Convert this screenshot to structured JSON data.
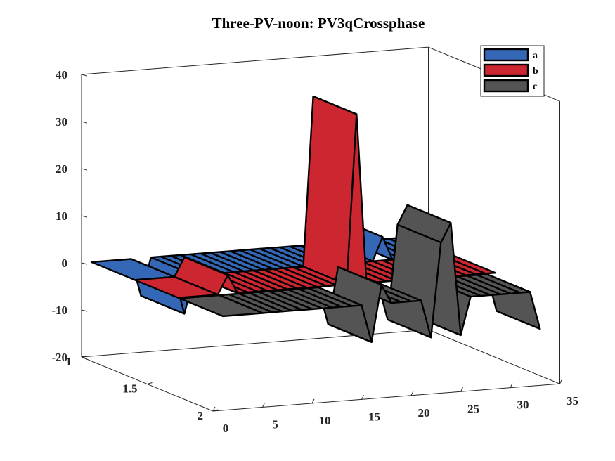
{
  "chart_data": {
    "type": "area",
    "title": "Three-PV-noon: PV3qCrossphase",
    "xlabel": "",
    "ylabel": "",
    "zlabel": "",
    "xlim": [
      0,
      35
    ],
    "ylim": [
      1,
      2
    ],
    "zlim": [
      -20,
      40
    ],
    "x_ticks": [
      "0",
      "5",
      "10",
      "15",
      "20",
      "25",
      "30",
      "35"
    ],
    "y_ticks": [
      "1",
      "1.5",
      "2"
    ],
    "z_ticks": [
      "-20",
      "-10",
      "0",
      "10",
      "20",
      "30",
      "40"
    ],
    "legend_position": "top-right",
    "series": [
      {
        "name": "a",
        "color": "#3467b5",
        "x": [
          1,
          5,
          6,
          7,
          8,
          9,
          10,
          11,
          12,
          13,
          14,
          15,
          16,
          17,
          18,
          19,
          20,
          21,
          22,
          23,
          24,
          25,
          26,
          27,
          28,
          29,
          30,
          31,
          32,
          33
        ],
        "values": [
          0,
          0,
          -8,
          0,
          0,
          0,
          0,
          0,
          0,
          0,
          0,
          0,
          0,
          0,
          0,
          0,
          0,
          0,
          0,
          0,
          0,
          0,
          5,
          0,
          0,
          0,
          0,
          0,
          0,
          -2
        ]
      },
      {
        "name": "b",
        "color": "#cc2631",
        "x": [
          1,
          5,
          6,
          7,
          8,
          9,
          10,
          11,
          12,
          13,
          14,
          15,
          16,
          17,
          18,
          19,
          20,
          21,
          22,
          23,
          24,
          25,
          26,
          27,
          28,
          29,
          30,
          31,
          32,
          33
        ],
        "values": [
          0,
          0,
          4,
          0,
          0,
          0,
          0,
          0,
          0,
          0,
          0,
          0,
          0,
          0,
          0,
          36,
          0,
          0,
          0,
          0,
          0,
          0,
          0,
          0,
          0,
          0,
          0,
          0,
          0,
          0
        ]
      },
      {
        "name": "c",
        "color": "#545454",
        "x": [
          1,
          5,
          6,
          7,
          8,
          9,
          10,
          11,
          12,
          13,
          14,
          15,
          16,
          17,
          18,
          19,
          20,
          21,
          22,
          23,
          24,
          25,
          26,
          27,
          28,
          29,
          30,
          31,
          32,
          33
        ],
        "values": [
          0,
          0,
          0,
          0,
          0,
          0,
          0,
          0,
          0,
          0,
          0,
          0,
          -8,
          4,
          0,
          0,
          0,
          0,
          -8,
          12,
          16,
          -8,
          0,
          0,
          0,
          0,
          0,
          0,
          0,
          -8
        ]
      }
    ]
  }
}
